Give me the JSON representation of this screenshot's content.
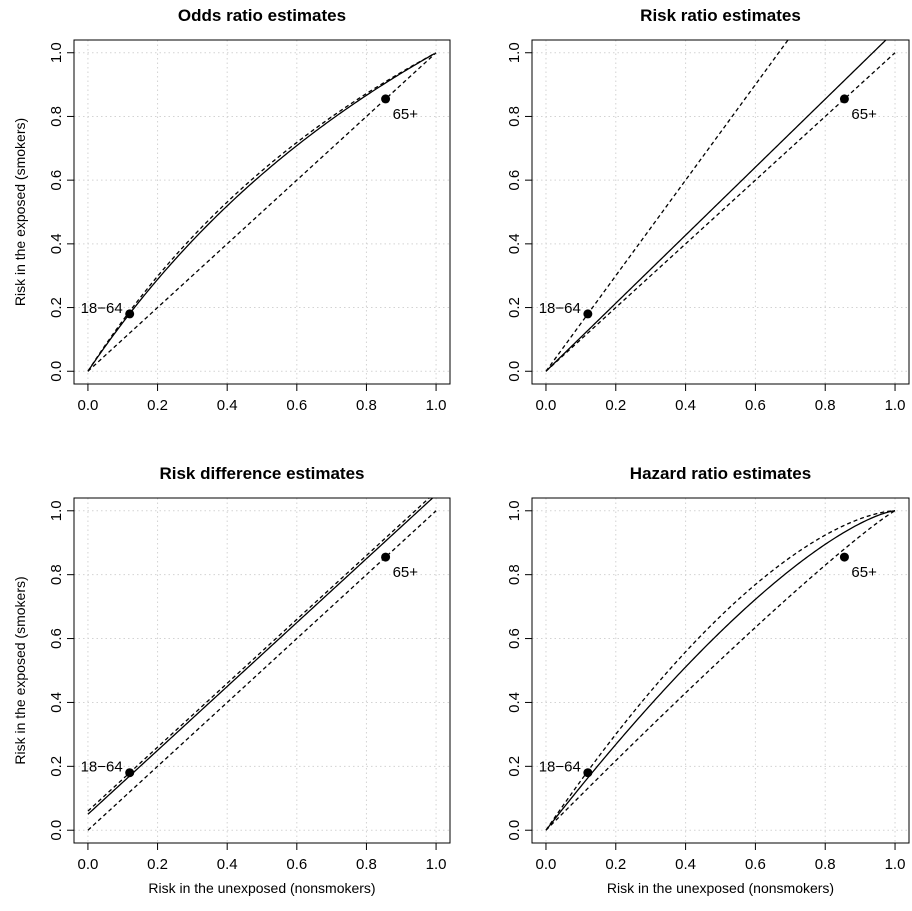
{
  "chart_data": [
    {
      "type": "line",
      "title": "Odds ratio estimates",
      "xlabel": "",
      "ylabel": "Risk in the exposed (smokers)",
      "xlim": [
        0,
        1
      ],
      "ylim": [
        0,
        1
      ],
      "xticks": [
        "0.0",
        "0.2",
        "0.4",
        "0.6",
        "0.8",
        "1.0"
      ],
      "yticks": [
        "0.0",
        "0.2",
        "0.4",
        "0.6",
        "0.8",
        "1.0"
      ],
      "grid": true,
      "series": [
        {
          "style": "solid",
          "model": "odds_ratio",
          "param": 1.62
        },
        {
          "style": "dashed",
          "model": "odds_ratio",
          "param": 1.7
        },
        {
          "style": "dashed",
          "model": "identity",
          "param": 0
        }
      ],
      "points": [
        {
          "label": "18−64",
          "x": 0.12,
          "y": 0.18,
          "label_pos": "left"
        },
        {
          "label": "65+",
          "x": 0.855,
          "y": 0.855,
          "label_pos": "below-right"
        }
      ]
    },
    {
      "type": "line",
      "title": "Risk ratio estimates",
      "xlabel": "",
      "ylabel": "",
      "xlim": [
        0,
        1
      ],
      "ylim": [
        0,
        1
      ],
      "xticks": [
        "0.0",
        "0.2",
        "0.4",
        "0.6",
        "0.8",
        "1.0"
      ],
      "yticks": [
        "0.0",
        "0.2",
        "0.4",
        "0.6",
        "0.8",
        "1.0"
      ],
      "grid": true,
      "series": [
        {
          "style": "solid",
          "model": "risk_ratio",
          "param": 1.068
        },
        {
          "style": "dashed",
          "model": "risk_ratio",
          "param": 1.5
        },
        {
          "style": "dashed",
          "model": "identity",
          "param": 0
        }
      ],
      "points": [
        {
          "label": "18−64",
          "x": 0.12,
          "y": 0.18,
          "label_pos": "left"
        },
        {
          "label": "65+",
          "x": 0.855,
          "y": 0.855,
          "label_pos": "below-right"
        }
      ]
    },
    {
      "type": "line",
      "title": "Risk difference estimates",
      "xlabel": "Risk in the unexposed (nonsmokers)",
      "ylabel": "Risk in the exposed (smokers)",
      "xlim": [
        0,
        1
      ],
      "ylim": [
        0,
        1
      ],
      "xticks": [
        "0.0",
        "0.2",
        "0.4",
        "0.6",
        "0.8",
        "1.0"
      ],
      "yticks": [
        "0.0",
        "0.2",
        "0.4",
        "0.6",
        "0.8",
        "1.0"
      ],
      "grid": true,
      "series": [
        {
          "style": "solid",
          "model": "risk_difference",
          "param": 0.05
        },
        {
          "style": "dashed",
          "model": "risk_difference",
          "param": 0.06
        },
        {
          "style": "dashed",
          "model": "identity",
          "param": 0
        }
      ],
      "points": [
        {
          "label": "18−64",
          "x": 0.12,
          "y": 0.18,
          "label_pos": "left"
        },
        {
          "label": "65+",
          "x": 0.855,
          "y": 0.855,
          "label_pos": "below-right"
        }
      ]
    },
    {
      "type": "line",
      "title": "Hazard ratio estimates",
      "xlabel": "Risk in the unexposed (nonsmokers)",
      "ylabel": "",
      "xlim": [
        0,
        1
      ],
      "ylim": [
        0,
        1
      ],
      "xticks": [
        "0.0",
        "0.2",
        "0.4",
        "0.6",
        "0.8",
        "1.0"
      ],
      "yticks": [
        "0.0",
        "0.2",
        "0.4",
        "0.6",
        "0.8",
        "1.0"
      ],
      "grid": true,
      "series": [
        {
          "style": "solid",
          "model": "hazard_ratio",
          "param": 1.4
        },
        {
          "style": "dashed",
          "model": "hazard_ratio",
          "param": 1.6
        },
        {
          "style": "dashed",
          "model": "hazard_ratio",
          "param": 1.1
        }
      ],
      "points": [
        {
          "label": "18−64",
          "x": 0.12,
          "y": 0.18,
          "label_pos": "left"
        },
        {
          "label": "65+",
          "x": 0.855,
          "y": 0.855,
          "label_pos": "below-right"
        }
      ]
    }
  ]
}
